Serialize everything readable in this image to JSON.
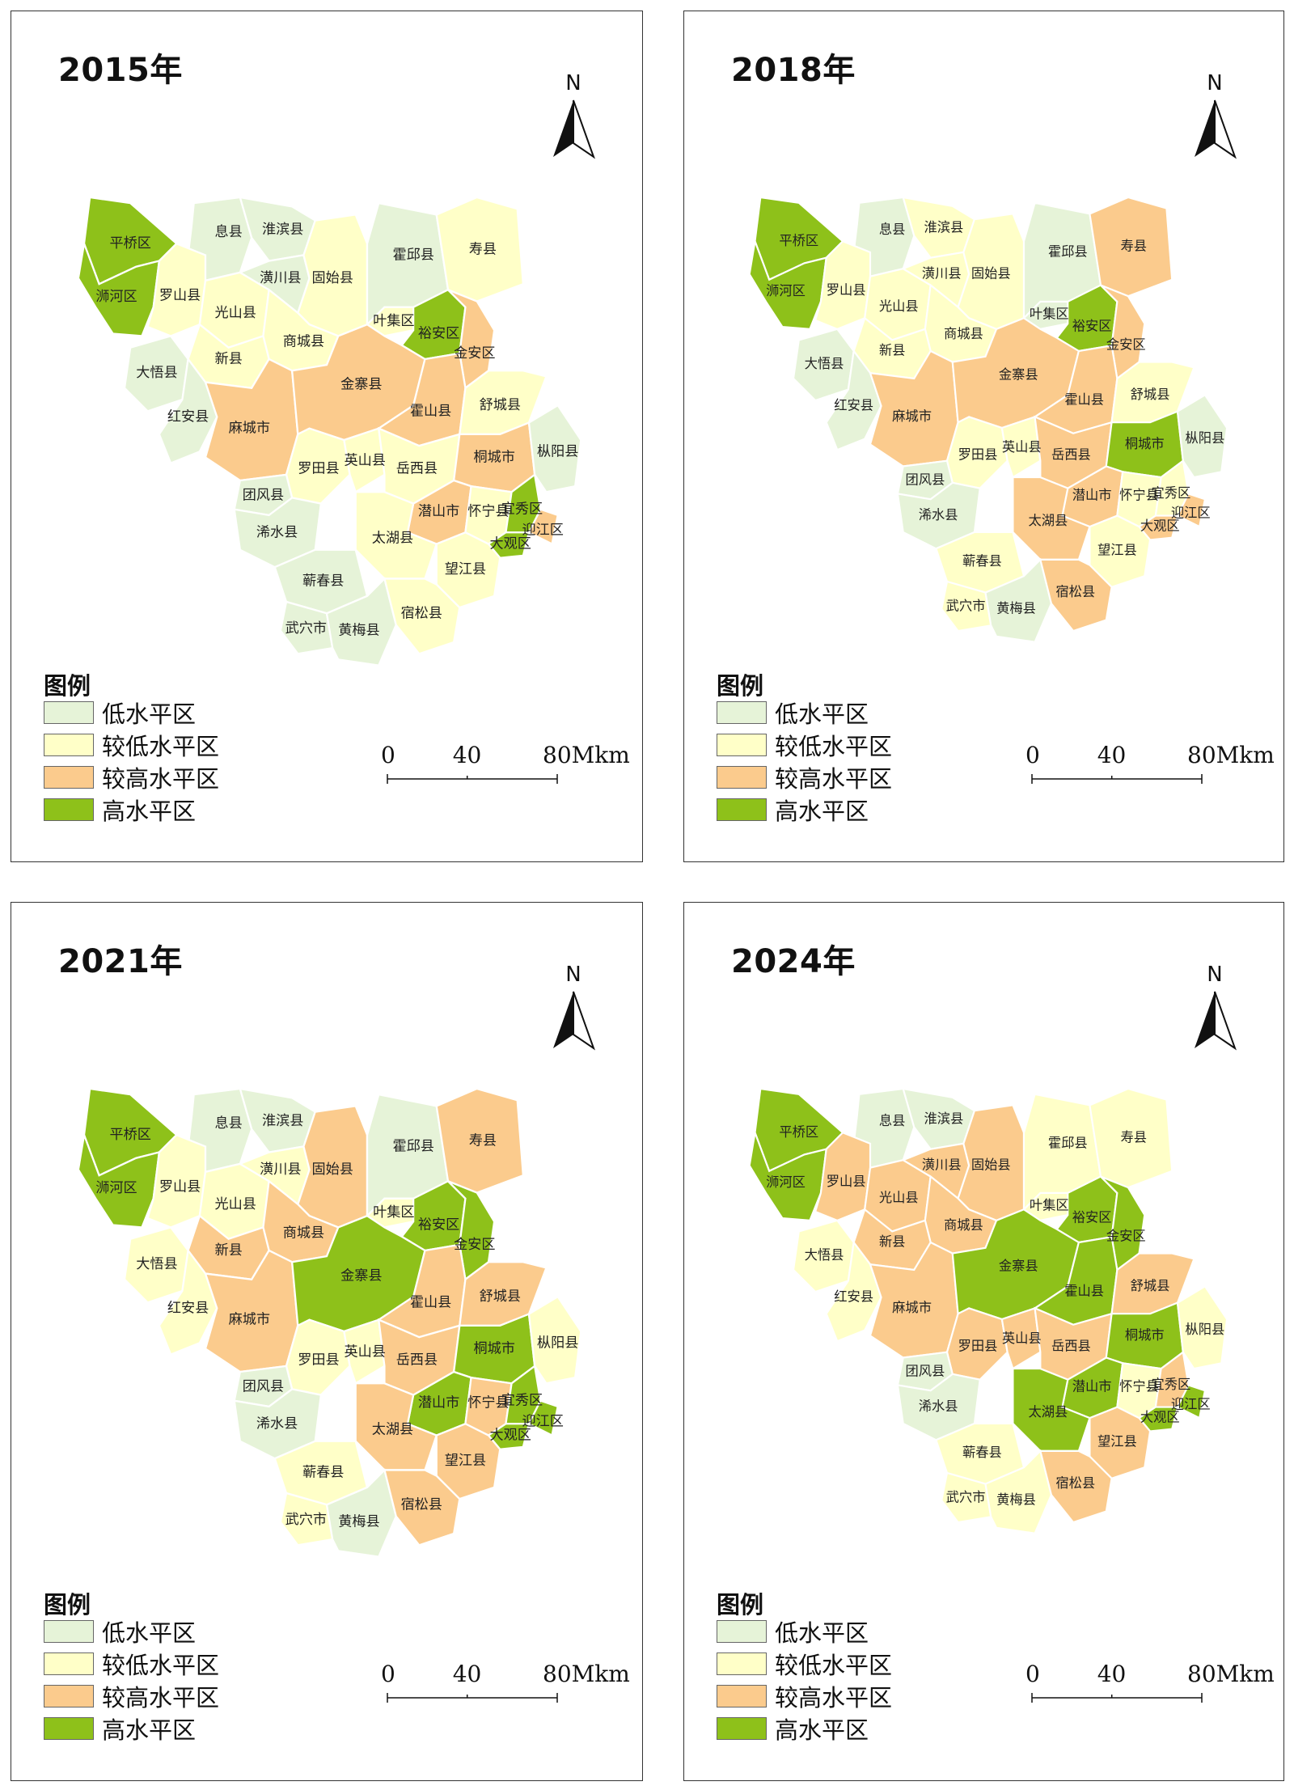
{
  "colors": {
    "low": "#e6f3d8",
    "lower": "#ffffc8",
    "higher": "#fbcb8d",
    "high": "#8ec11a"
  },
  "legend": {
    "title": "图例",
    "items": [
      {
        "label": "低水平区",
        "level": "low"
      },
      {
        "label": "较低水平区",
        "level": "lower"
      },
      {
        "label": "较高水平区",
        "level": "higher"
      },
      {
        "label": "高水平区",
        "level": "high"
      }
    ]
  },
  "scale": {
    "ticks": [
      "0",
      "40",
      "80Mkm"
    ]
  },
  "north_label": "N",
  "counties": [
    "平桥区",
    "浉河区",
    "息县",
    "淮滨县",
    "罗山县",
    "光山县",
    "潢川县",
    "固始县",
    "霍邱县",
    "寿县",
    "叶集区",
    "裕安区",
    "金安区",
    "商城县",
    "新县",
    "大悟县",
    "红安县",
    "麻城市",
    "金寨县",
    "霍山县",
    "舒城县",
    "罗田县",
    "英山县",
    "岳西县",
    "桐城市",
    "枞阳县",
    "团风县",
    "潜山市",
    "怀宁县",
    "宜秀区",
    "迎江区",
    "大观区",
    "浠水县",
    "太湖县",
    "蕲春县",
    "望江县",
    "武穴市",
    "黄梅县",
    "宿松县"
  ],
  "panels": [
    {
      "year": "2015年",
      "levels": {
        "平桥区": "high",
        "浉河区": "high",
        "息县": "low",
        "淮滨县": "low",
        "罗山县": "lower",
        "光山县": "lower",
        "潢川县": "low",
        "固始县": "lower",
        "霍邱县": "low",
        "寿县": "lower",
        "叶集区": "lower",
        "裕安区": "high",
        "金安区": "higher",
        "商城县": "lower",
        "新县": "lower",
        "大悟县": "low",
        "红安县": "low",
        "麻城市": "higher",
        "金寨县": "higher",
        "霍山县": "higher",
        "舒城县": "lower",
        "罗田县": "lower",
        "英山县": "lower",
        "岳西县": "lower",
        "桐城市": "higher",
        "枞阳县": "low",
        "团风县": "low",
        "潜山市": "higher",
        "怀宁县": "lower",
        "宜秀区": "high",
        "迎江区": "higher",
        "大观区": "high",
        "浠水县": "low",
        "太湖县": "lower",
        "蕲春县": "low",
        "望江县": "lower",
        "武穴市": "low",
        "黄梅县": "low",
        "宿松县": "lower"
      }
    },
    {
      "year": "2018年",
      "levels": {
        "平桥区": "high",
        "浉河区": "high",
        "息县": "low",
        "淮滨县": "lower",
        "罗山县": "lower",
        "光山县": "lower",
        "潢川县": "lower",
        "固始县": "lower",
        "霍邱县": "low",
        "寿县": "higher",
        "叶集区": "low",
        "裕安区": "high",
        "金安区": "higher",
        "商城县": "lower",
        "新县": "lower",
        "大悟县": "low",
        "红安县": "low",
        "麻城市": "higher",
        "金寨县": "higher",
        "霍山县": "higher",
        "舒城县": "lower",
        "罗田县": "lower",
        "英山县": "lower",
        "岳西县": "higher",
        "桐城市": "high",
        "枞阳县": "low",
        "团风县": "low",
        "潜山市": "higher",
        "怀宁县": "lower",
        "宜秀区": "lower",
        "迎江区": "higher",
        "大观区": "higher",
        "浠水县": "low",
        "太湖县": "higher",
        "蕲春县": "lower",
        "望江县": "lower",
        "武穴市": "lower",
        "黄梅县": "low",
        "宿松县": "higher"
      }
    },
    {
      "year": "2021年",
      "levels": {
        "平桥区": "high",
        "浉河区": "high",
        "息县": "low",
        "淮滨县": "low",
        "罗山县": "lower",
        "光山县": "lower",
        "潢川县": "lower",
        "固始县": "higher",
        "霍邱县": "low",
        "寿县": "higher",
        "叶集区": "lower",
        "裕安区": "high",
        "金安区": "high",
        "商城县": "higher",
        "新县": "higher",
        "大悟县": "lower",
        "红安县": "lower",
        "麻城市": "higher",
        "金寨县": "high",
        "霍山县": "higher",
        "舒城县": "higher",
        "罗田县": "lower",
        "英山县": "lower",
        "岳西县": "higher",
        "桐城市": "high",
        "枞阳县": "lower",
        "团风县": "low",
        "潜山市": "high",
        "怀宁县": "higher",
        "宜秀区": "high",
        "迎江区": "high",
        "大观区": "high",
        "浠水县": "low",
        "太湖县": "higher",
        "蕲春县": "lower",
        "望江县": "higher",
        "武穴市": "lower",
        "黄梅县": "low",
        "宿松县": "higher"
      }
    },
    {
      "year": "2024年",
      "levels": {
        "平桥区": "high",
        "浉河区": "high",
        "息县": "low",
        "淮滨县": "low",
        "罗山县": "higher",
        "光山县": "higher",
        "潢川县": "higher",
        "固始县": "higher",
        "霍邱县": "lower",
        "寿县": "lower",
        "叶集区": "lower",
        "裕安区": "high",
        "金安区": "high",
        "商城县": "higher",
        "新县": "higher",
        "大悟县": "lower",
        "红安县": "lower",
        "麻城市": "higher",
        "金寨县": "high",
        "霍山县": "high",
        "舒城县": "higher",
        "罗田县": "higher",
        "英山县": "higher",
        "岳西县": "higher",
        "桐城市": "high",
        "枞阳县": "lower",
        "团风县": "low",
        "潜山市": "high",
        "怀宁县": "lower",
        "宜秀区": "higher",
        "迎江区": "high",
        "大观区": "high",
        "浠水县": "low",
        "太湖县": "high",
        "蕲春县": "lower",
        "望江县": "higher",
        "武穴市": "lower",
        "黄梅县": "lower",
        "宿松县": "higher"
      }
    }
  ]
}
